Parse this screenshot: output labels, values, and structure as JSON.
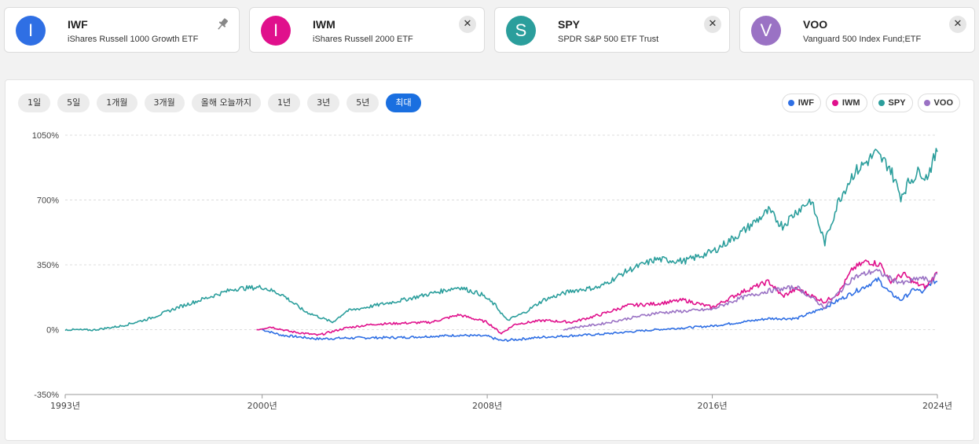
{
  "tickers": [
    {
      "initial": "I",
      "symbol": "IWF",
      "name": "iShares Russell 1000 Growth ETF",
      "color": "#2f6fe4",
      "action": "pin"
    },
    {
      "initial": "I",
      "symbol": "IWM",
      "name": "iShares Russell 2000 ETF",
      "color": "#e0108c",
      "action": "close"
    },
    {
      "initial": "S",
      "symbol": "SPY",
      "name": "SPDR S&P 500 ETF Trust",
      "color": "#2b9e9c",
      "action": "close"
    },
    {
      "initial": "V",
      "symbol": "VOO",
      "name": "Vanguard 500 Index Fund;ETF",
      "color": "#9a72c4",
      "action": "close"
    }
  ],
  "icons": {
    "close": "✕",
    "pin": "pin-icon"
  },
  "ranges": [
    "1일",
    "5일",
    "1개월",
    "3개월",
    "올해 오늘까지",
    "1년",
    "3년",
    "5년",
    "최대"
  ],
  "active_range": "최대",
  "chart_data": {
    "type": "line",
    "title": "",
    "xlabel": "",
    "ylabel": "",
    "x_range": [
      1993,
      2024
    ],
    "ylim": [
      -350,
      1050
    ],
    "y_ticks": [
      "1050%",
      "700%",
      "350%",
      "0%",
      "-350%"
    ],
    "y_tick_values": [
      1050,
      700,
      350,
      0,
      -350
    ],
    "x_ticks": [
      "1993년",
      "2000년",
      "2008년",
      "2016년",
      "2024년"
    ],
    "x_tick_values": [
      1993,
      2000,
      2008,
      2016,
      2024
    ],
    "grid": true,
    "legend": "top-right",
    "series": [
      {
        "name": "IWF",
        "color": "#2f6fe4",
        "points": [
          [
            2000,
            0
          ],
          [
            2000.7,
            -30
          ],
          [
            2002,
            -50
          ],
          [
            2003,
            -45
          ],
          [
            2005,
            -42
          ],
          [
            2007,
            -30
          ],
          [
            2008,
            -35
          ],
          [
            2008.5,
            -60
          ],
          [
            2010,
            -40
          ],
          [
            2012,
            -25
          ],
          [
            2014,
            0
          ],
          [
            2016,
            20
          ],
          [
            2018,
            60
          ],
          [
            2019,
            60
          ],
          [
            2020,
            120
          ],
          [
            2021,
            200
          ],
          [
            2021.9,
            270
          ],
          [
            2022.3,
            200
          ],
          [
            2022.7,
            160
          ],
          [
            2023.2,
            220
          ],
          [
            2023.5,
            200
          ],
          [
            2023.8,
            260
          ],
          [
            2024,
            260
          ]
        ]
      },
      {
        "name": "IWM",
        "color": "#e0108c",
        "points": [
          [
            1999.8,
            0
          ],
          [
            2000.3,
            15
          ],
          [
            2001,
            -10
          ],
          [
            2002,
            -30
          ],
          [
            2003,
            10
          ],
          [
            2004,
            30
          ],
          [
            2006,
            40
          ],
          [
            2007,
            80
          ],
          [
            2008,
            40
          ],
          [
            2008.5,
            -20
          ],
          [
            2009,
            30
          ],
          [
            2010,
            50
          ],
          [
            2011,
            40
          ],
          [
            2012,
            80
          ],
          [
            2013,
            130
          ],
          [
            2014,
            140
          ],
          [
            2015,
            160
          ],
          [
            2016,
            120
          ],
          [
            2017,
            200
          ],
          [
            2018,
            260
          ],
          [
            2018.5,
            180
          ],
          [
            2019,
            220
          ],
          [
            2020,
            150
          ],
          [
            2020.5,
            200
          ],
          [
            2021,
            330
          ],
          [
            2021.5,
            370
          ],
          [
            2022,
            350
          ],
          [
            2022.3,
            260
          ],
          [
            2022.8,
            300
          ],
          [
            2023.2,
            250
          ],
          [
            2023.6,
            230
          ],
          [
            2024,
            310
          ]
        ]
      },
      {
        "name": "SPY",
        "color": "#2b9e9c",
        "points": [
          [
            1993,
            0
          ],
          [
            1994,
            -2
          ],
          [
            1995,
            20
          ],
          [
            1996,
            60
          ],
          [
            1997,
            120
          ],
          [
            1998,
            170
          ],
          [
            1999,
            220
          ],
          [
            2000,
            230
          ],
          [
            2000.7,
            190
          ],
          [
            2001.5,
            100
          ],
          [
            2002.5,
            40
          ],
          [
            2003,
            100
          ],
          [
            2005,
            160
          ],
          [
            2007,
            230
          ],
          [
            2007.8,
            190
          ],
          [
            2008.3,
            130
          ],
          [
            2008.7,
            50
          ],
          [
            2009.3,
            90
          ],
          [
            2010,
            160
          ],
          [
            2011,
            210
          ],
          [
            2012,
            230
          ],
          [
            2013,
            320
          ],
          [
            2014,
            380
          ],
          [
            2015,
            370
          ],
          [
            2016,
            420
          ],
          [
            2017,
            520
          ],
          [
            2018,
            640
          ],
          [
            2018.5,
            560
          ],
          [
            2019,
            640
          ],
          [
            2019.5,
            700
          ],
          [
            2020,
            470
          ],
          [
            2020.5,
            700
          ],
          [
            2021,
            840
          ],
          [
            2021.8,
            950
          ],
          [
            2022.3,
            880
          ],
          [
            2022.7,
            720
          ],
          [
            2023,
            800
          ],
          [
            2023.4,
            860
          ],
          [
            2023.6,
            820
          ],
          [
            2024,
            960
          ]
        ]
      },
      {
        "name": "VOO",
        "color": "#9a72c4",
        "points": [
          [
            2010.7,
            0
          ],
          [
            2011,
            10
          ],
          [
            2012,
            30
          ],
          [
            2013,
            60
          ],
          [
            2014,
            90
          ],
          [
            2015,
            100
          ],
          [
            2016,
            110
          ],
          [
            2017,
            170
          ],
          [
            2018,
            210
          ],
          [
            2019,
            230
          ],
          [
            2020,
            120
          ],
          [
            2020.5,
            200
          ],
          [
            2021,
            280
          ],
          [
            2021.8,
            320
          ],
          [
            2022.4,
            270
          ],
          [
            2022.8,
            250
          ],
          [
            2023.4,
            280
          ],
          [
            2023.8,
            260
          ],
          [
            2024,
            300
          ]
        ]
      }
    ]
  }
}
